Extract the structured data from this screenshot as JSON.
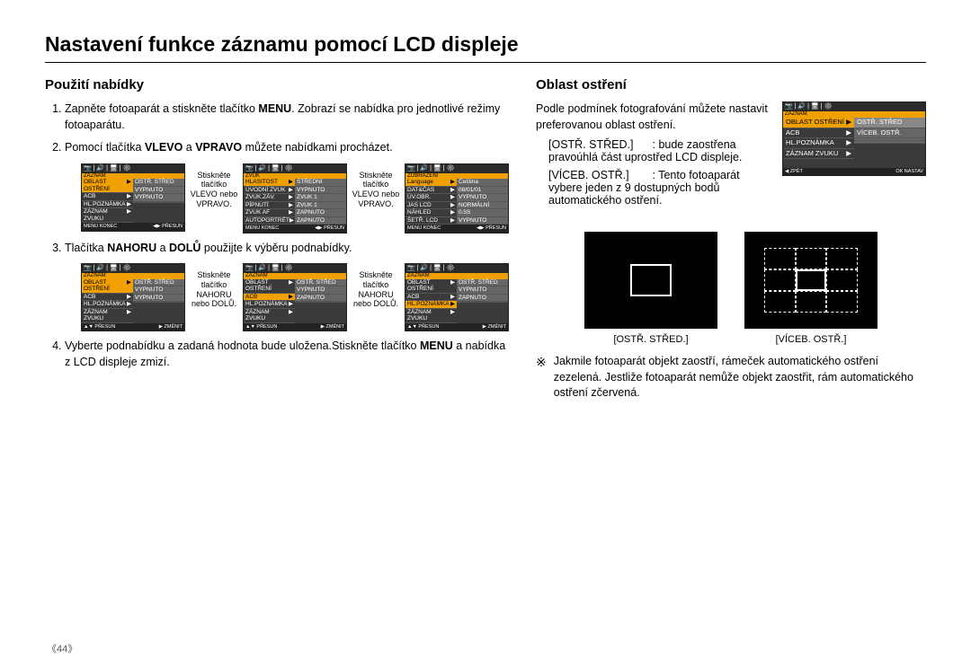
{
  "page_title": "Nastavení funkce záznamu pomocí LCD displeje",
  "page_number": "《44》",
  "left": {
    "heading": "Použití nabídky",
    "steps": [
      {
        "pre": "Zapněte fotoaparát a stiskněte tlačítko ",
        "bold1": "MENU",
        "post": ".  Zobrazí se nabídka pro jednotlivé režimy fotoaparátu."
      },
      {
        "pre": "Pomocí tlačítka ",
        "bold1": "VLEVO",
        "mid": " a ",
        "bold2": "VPRAVO",
        "post": " můžete nabídkami procházet."
      },
      {
        "pre": "Tlačítka ",
        "bold1": "NAHORU",
        "mid": " a ",
        "bold2": "DOLŮ",
        "post": " použijte k výběru podnabídky."
      },
      {
        "pre": "Vyberte podnabídku a zadaná hodnota bude uložena.Stiskněte tlačítko ",
        "bold1": "MENU",
        "post": " a nabídka z LCD displeje zmizí."
      }
    ],
    "hint_lr": "Stiskněte tlačítko VLEVO nebo VPRAVO.",
    "hint_ud": "Stiskněte tlačítko NAHORU nebo DOLŮ.",
    "screens_row1": [
      {
        "title": "ZÁZNAM",
        "left_rows": [
          {
            "t": "OBLAST OSTŘENÍ",
            "sel": true
          },
          {
            "t": "ACB",
            "sel": false
          },
          {
            "t": "HL.POZNÁMKA",
            "sel": false
          },
          {
            "t": "ZÁZNAM ZVUKU",
            "sel": false
          }
        ],
        "right_rows": [
          {
            "t": "OSTŘ. STŘED"
          },
          {
            "t": "VYPNUTO"
          },
          {
            "t": "VYPNUTO"
          },
          {
            "t": ""
          }
        ],
        "foot_l": "MENU KONEC",
        "foot_r": "◀▶ PŘESUN"
      },
      {
        "title": "ZVUK",
        "left_rows": [
          {
            "t": "HLASITOST",
            "sel": true
          },
          {
            "t": "ÚVODNÍ ZVUK",
            "sel": false
          },
          {
            "t": "ZVUK.ZÁV.",
            "sel": false
          },
          {
            "t": "PÍPNUTÍ",
            "sel": false
          },
          {
            "t": "ZVUK AF",
            "sel": false
          },
          {
            "t": "AUTOPORTRÉT",
            "sel": false
          }
        ],
        "right_rows": [
          {
            "t": "STŘEDNÍ"
          },
          {
            "t": "VYPNUTO"
          },
          {
            "t": "ZVUK 1"
          },
          {
            "t": "ZVUK 1"
          },
          {
            "t": "ZAPNUTO"
          },
          {
            "t": "ZAPNUTO"
          }
        ],
        "foot_l": "MENU KONEC",
        "foot_r": "◀▶ PŘESUN"
      },
      {
        "title": "ZOBRAZENÍ",
        "left_rows": [
          {
            "t": "Language",
            "sel": true
          },
          {
            "t": "DAT&ČAS",
            "sel": false
          },
          {
            "t": "ÚV.OBR.",
            "sel": false
          },
          {
            "t": "JAS LCD",
            "sel": false
          },
          {
            "t": "NÁHLED",
            "sel": false
          },
          {
            "t": "ŠETŘ. LCD",
            "sel": false
          }
        ],
        "right_rows": [
          {
            "t": "Čeština"
          },
          {
            "t": "08/01/01"
          },
          {
            "t": "VYPNUTO"
          },
          {
            "t": "NORMÁLNÍ"
          },
          {
            "t": "0.5S"
          },
          {
            "t": "VYPNUTO"
          }
        ],
        "foot_l": "MENU KONEC",
        "foot_r": "◀▶ PŘESUN"
      }
    ],
    "screens_row2": [
      {
        "title": "ZÁZNAM",
        "left_rows": [
          {
            "t": "OBLAST OSTŘENÍ",
            "sel": true
          },
          {
            "t": "ACB",
            "sel": false
          },
          {
            "t": "HL.POZNÁMKA",
            "sel": false
          },
          {
            "t": "ZÁZNAM ZVUKU",
            "sel": false
          }
        ],
        "right_rows": [
          {
            "t": "OSTŘ. STŘED"
          },
          {
            "t": "VYPNUTO"
          },
          {
            "t": "VYPNUTO"
          },
          {
            "t": ""
          }
        ],
        "foot_l": "▲▼ PŘESUN",
        "foot_r": "▶ ZMĚNIT"
      },
      {
        "title": "ZÁZNAM",
        "left_rows": [
          {
            "t": "OBLAST OSTŘENÍ",
            "sel": false
          },
          {
            "t": "ACB",
            "sel": true
          },
          {
            "t": "HL.POZNÁMKA",
            "sel": false
          },
          {
            "t": "ZÁZNAM ZVUKU",
            "sel": false
          }
        ],
        "right_rows": [
          {
            "t": "OSTŘ. STŘED"
          },
          {
            "t": "VYPNUTO"
          },
          {
            "t": "ZAPNUTO"
          },
          {
            "t": ""
          }
        ],
        "foot_l": "▲▼ PŘESUN",
        "foot_r": "▶ ZMĚNIT"
      },
      {
        "title": "ZÁZNAM",
        "left_rows": [
          {
            "t": "OBLAST OSTŘENÍ",
            "sel": false
          },
          {
            "t": "ACB",
            "sel": false
          },
          {
            "t": "HL.POZNÁMKA",
            "sel": true
          },
          {
            "t": "ZÁZNAM ZVUKU",
            "sel": false
          }
        ],
        "right_rows": [
          {
            "t": "OSTŘ. STŘED"
          },
          {
            "t": "VYPNUTO"
          },
          {
            "t": "ZAPNUTO"
          },
          {
            "t": ""
          }
        ],
        "foot_l": "▲▼ PŘESUN",
        "foot_r": "▶ ZMĚNIT"
      }
    ]
  },
  "right": {
    "heading": "Oblast ostření",
    "intro": "Podle podmínek fotografování můžete nastavit preferovanou oblast ostření.",
    "items": [
      {
        "label": "[OSTŘ. STŘED.]",
        "sep": ":",
        "desc": "bude zaostřena pravoúhlá část uprostřed LCD displeje."
      },
      {
        "label": "[VÍCEB. OSTŘ.]",
        "sep": ":",
        "desc": "Tento fotoaparát vybere jeden z 9 dostupných bodů automatického ostření."
      }
    ],
    "right_screen": {
      "title": "ZÁZNAM",
      "left_rows": [
        {
          "t": "OBLAST OSTŘENÍ",
          "sel": true
        },
        {
          "t": "ACB",
          "sel": false
        },
        {
          "t": "HL.POZNÁMKA",
          "sel": false
        },
        {
          "t": "ZÁZNAM ZVUKU",
          "sel": false
        }
      ],
      "right_rows": [
        {
          "t": "OSTŘ. STŘED",
          "sel": true
        },
        {
          "t": "VÍCEB. OSTŘ.",
          "sel": false
        },
        {
          "t": "",
          "sel": false
        },
        {
          "t": "",
          "sel": false
        }
      ],
      "foot_l": "◀ ZPĚT",
      "foot_r": "OK  NASTAV"
    },
    "illus": [
      {
        "caption": "[OSTŘ. STŘED.]"
      },
      {
        "caption": "[VÍCEB. OSTŘ.]"
      }
    ],
    "note_symbol": "※",
    "note": "Jakmile fotoaparát objekt zaostří, rámeček automatického ostření zezelená. Jestliže fotoaparát nemůže objekt zaostřit, rám automatického ostření zčervená."
  },
  "tab_icons": "📷 | 🔊 | 🖥 | ⚙"
}
